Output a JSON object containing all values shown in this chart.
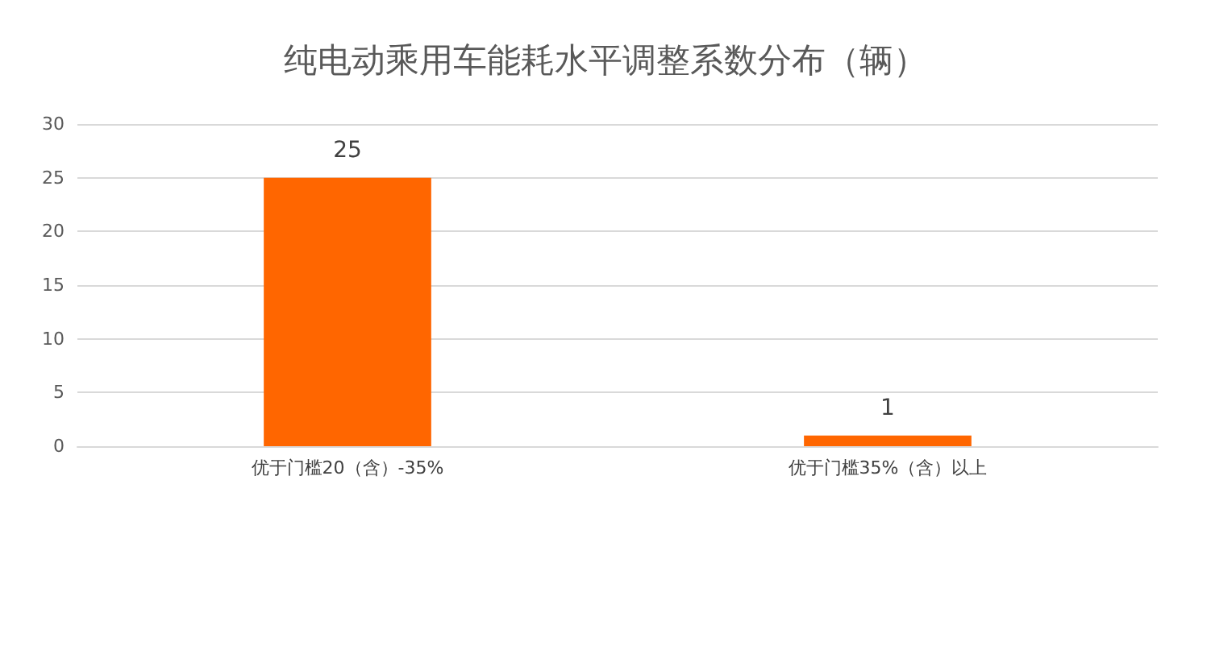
{
  "chart_data": {
    "type": "bar",
    "title": "纯电动乘用车能耗水平调整系数分布（辆）",
    "categories": [
      "优于门槛20（含）-35%",
      "优于门槛35%（含）以上"
    ],
    "values": [
      25,
      1
    ],
    "color": "#ff6600",
    "data_labels": true,
    "ylim": [
      0,
      30
    ],
    "yticks": [
      0,
      5,
      10,
      15,
      20,
      25,
      30
    ],
    "grid": "y"
  }
}
